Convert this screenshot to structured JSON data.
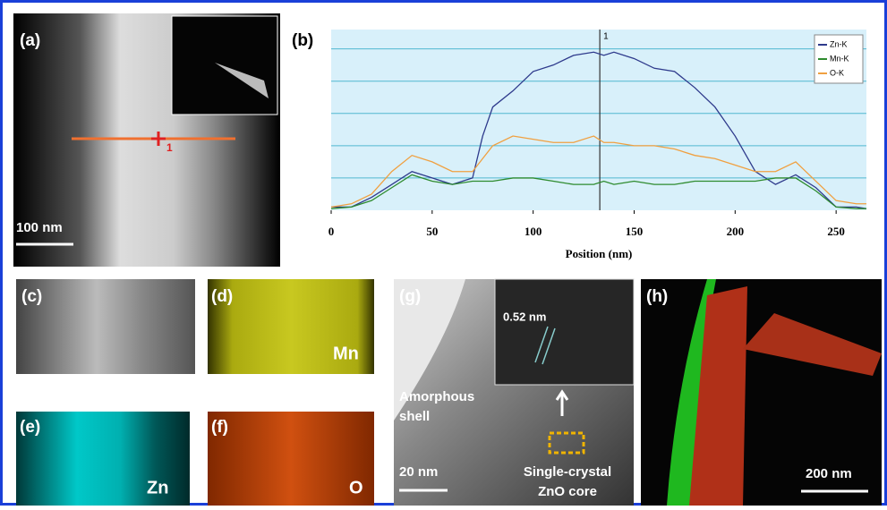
{
  "chart_data": {
    "type": "line",
    "panel_label": "(b)",
    "xlabel": "Position (nm)",
    "x": [
      0,
      10,
      20,
      30,
      40,
      50,
      60,
      70,
      75,
      80,
      90,
      100,
      110,
      120,
      130,
      135,
      140,
      150,
      160,
      170,
      180,
      190,
      200,
      210,
      220,
      230,
      240,
      250,
      260,
      265
    ],
    "series": [
      {
        "name": "Zn-K",
        "color": "#2e3a8c",
        "values": [
          0.1,
          0.1,
          0.4,
          0.8,
          1.2,
          1.0,
          0.8,
          1.0,
          2.3,
          3.2,
          3.7,
          4.3,
          4.5,
          4.8,
          4.9,
          4.8,
          4.9,
          4.7,
          4.4,
          4.3,
          3.8,
          3.2,
          2.3,
          1.2,
          0.8,
          1.1,
          0.7,
          0.1,
          0.1,
          0.05
        ]
      },
      {
        "name": "Mn-K",
        "color": "#2e8b2e",
        "values": [
          0.05,
          0.1,
          0.3,
          0.7,
          1.1,
          0.9,
          0.8,
          0.9,
          0.9,
          0.9,
          1.0,
          1.0,
          0.9,
          0.8,
          0.8,
          0.9,
          0.8,
          0.9,
          0.8,
          0.8,
          0.9,
          0.9,
          0.9,
          0.9,
          1.0,
          1.0,
          0.6,
          0.1,
          0.05,
          0.05
        ]
      },
      {
        "name": "O-K",
        "color": "#f0a040",
        "values": [
          0.1,
          0.2,
          0.5,
          1.2,
          1.7,
          1.5,
          1.2,
          1.2,
          1.6,
          2.0,
          2.3,
          2.2,
          2.1,
          2.1,
          2.3,
          2.1,
          2.1,
          2.0,
          2.0,
          1.9,
          1.7,
          1.6,
          1.4,
          1.2,
          1.2,
          1.5,
          0.9,
          0.3,
          0.2,
          0.2
        ]
      }
    ],
    "xlim": [
      0,
      265
    ],
    "xticks": [
      0,
      50,
      100,
      150,
      200,
      250
    ],
    "ylim": [
      0,
      5.6
    ],
    "yticks": [
      1,
      2,
      3,
      4,
      5
    ],
    "grid": true,
    "legend": "upper right",
    "marker_x": 133,
    "marker_label": "1"
  },
  "panels": {
    "a": {
      "label": "(a)",
      "scale_bar": "100 nm",
      "point_label": "1"
    },
    "c": {
      "label": "(c)"
    },
    "d": {
      "label": "(d)",
      "element": "Mn"
    },
    "e": {
      "label": "(e)",
      "element": "Zn"
    },
    "f": {
      "label": "(f)",
      "element": "O"
    },
    "g": {
      "label": "(g)",
      "spacing": "0.52 nm",
      "shell_line1": "Amorphous",
      "shell_line2": "shell",
      "core_line1": "Single-crystal",
      "core_line2": "ZnO core",
      "scale_bar": "20 nm"
    },
    "h": {
      "label": "(h)",
      "scale_bar": "200 nm"
    }
  }
}
